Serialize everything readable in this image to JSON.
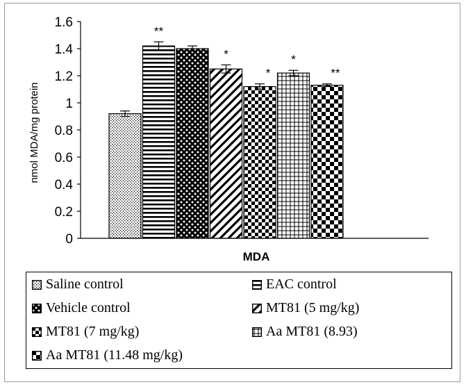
{
  "chart_data": {
    "type": "bar",
    "xlabel": "MDA",
    "ylabel": "nmol MDA/mg protein",
    "ylim": [
      0,
      1.6
    ],
    "yticks": [
      "0",
      "0.2",
      "0.4",
      "0.6",
      "0.8",
      "1",
      "1.2",
      "1.4",
      "1.6"
    ],
    "grid": false,
    "legend_position": "bottom",
    "series": [
      {
        "name": "Saline control",
        "value": 0.92,
        "error": 0.02,
        "significance": ""
      },
      {
        "name": "EAC control",
        "value": 1.42,
        "error": 0.03,
        "significance": "**"
      },
      {
        "name": "Vehicle control",
        "value": 1.4,
        "error": 0.02,
        "significance": ""
      },
      {
        "name": "MT81 (5 mg/kg)",
        "value": 1.25,
        "error": 0.03,
        "significance": "*"
      },
      {
        "name": "MT81 (7 mg/kg)",
        "value": 1.12,
        "error": 0.02,
        "significance": "*"
      },
      {
        "name": "Aa MT81 (8.93)",
        "value": 1.22,
        "error": 0.02,
        "significance": "*"
      },
      {
        "name": "Aa MT81 (11.48 mg/kg)",
        "value": 1.13,
        "error": 0.01,
        "significance": "**"
      }
    ]
  },
  "colors": {
    "bar_fill": "#ffffff",
    "pattern": "#000000",
    "frame": "#9a9a9a"
  }
}
